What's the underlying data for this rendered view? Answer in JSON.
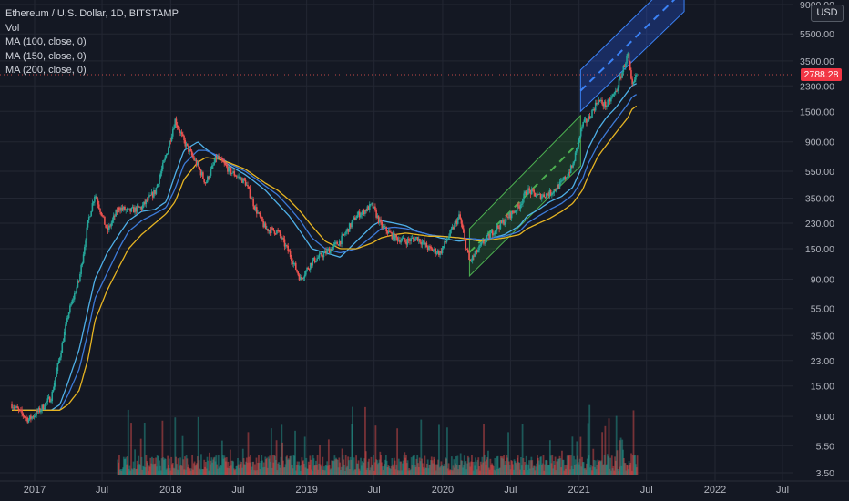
{
  "legend": {
    "symbol": "Ethereum / U.S. Dollar, 1D, BITSTAMP",
    "vol": "Vol",
    "ma100": "MA (100, close, 0)",
    "ma150": "MA (150, close, 0)",
    "ma200": "MA (200, close, 0)"
  },
  "currency": "USD",
  "last_price": "2788.28",
  "colors": {
    "up": "#26a69a",
    "down": "#ef5350",
    "ma100": "#4fb0e8",
    "ma150": "#3d7bd9",
    "ma200": "#e6b422",
    "green_channel": "#2e7d32",
    "blue_channel": "#2962ff"
  },
  "chart_data": {
    "type": "line",
    "scale": "log",
    "y_ticks": [
      "9000.00",
      "5500.00",
      "3500.00",
      "2300.00",
      "1500.00",
      "900.00",
      "550.00",
      "350.00",
      "230.00",
      "150.00",
      "90.00",
      "55.00",
      "35.00",
      "23.00",
      "15.00",
      "9.00",
      "5.50",
      "3.50"
    ],
    "x_ticks": [
      "2017",
      "Jul",
      "2018",
      "Jul",
      "2019",
      "Jul",
      "2020",
      "Jul",
      "2021",
      "Jul",
      "2022",
      "Jul"
    ],
    "x": [
      "2016-11-01",
      "2016-12-15",
      "2017-01-15",
      "2017-02-15",
      "2017-03-10",
      "2017-04-01",
      "2017-05-01",
      "2017-05-25",
      "2017-06-12",
      "2017-07-15",
      "2017-08-15",
      "2017-09-10",
      "2017-10-15",
      "2017-11-20",
      "2017-12-20",
      "2018-01-13",
      "2018-02-06",
      "2018-03-15",
      "2018-04-05",
      "2018-05-05",
      "2018-06-10",
      "2018-07-20",
      "2018-08-15",
      "2018-09-12",
      "2018-10-15",
      "2018-11-15",
      "2018-12-15",
      "2019-01-15",
      "2019-02-20",
      "2019-04-01",
      "2019-05-15",
      "2019-06-26",
      "2019-07-20",
      "2019-08-25",
      "2019-09-25",
      "2019-10-25",
      "2019-11-25",
      "2019-12-25",
      "2020-02-15",
      "2020-03-13",
      "2020-04-15",
      "2020-05-15",
      "2020-06-15",
      "2020-07-25",
      "2020-08-15",
      "2020-09-15",
      "2020-10-15",
      "2020-11-15",
      "2020-12-15",
      "2021-01-10",
      "2021-01-25",
      "2021-02-20",
      "2021-03-15",
      "2021-04-10",
      "2021-05-12",
      "2021-05-23",
      "2021-06-05"
    ],
    "series": [
      {
        "name": "Ethereum / U.S. Dollar",
        "values": [
          11,
          8.5,
          10,
          12.5,
          25,
          50,
          90,
          240,
          380,
          200,
          300,
          280,
          300,
          390,
          720,
          1300,
          900,
          600,
          450,
          700,
          550,
          460,
          300,
          210,
          200,
          140,
          90,
          120,
          140,
          170,
          260,
          310,
          220,
          180,
          170,
          180,
          150,
          140,
          260,
          120,
          160,
          200,
          240,
          310,
          400,
          360,
          380,
          450,
          600,
          1200,
          1300,
          1800,
          1650,
          2100,
          3900,
          2200,
          2788.28
        ]
      },
      {
        "name": "MA (100, close, 0)",
        "values": [
          10,
          10,
          10,
          10,
          11,
          16,
          28,
          55,
          90,
          140,
          190,
          240,
          280,
          290,
          330,
          520,
          780,
          900,
          800,
          700,
          600,
          520,
          460,
          400,
          320,
          260,
          200,
          150,
          140,
          130,
          170,
          220,
          240,
          230,
          220,
          200,
          190,
          180,
          170,
          175,
          170,
          180,
          190,
          220,
          260,
          290,
          330,
          360,
          420,
          600,
          800,
          1100,
          1350,
          1600,
          2100,
          2300,
          2400
        ]
      },
      {
        "name": "MA (150, close, 0)",
        "values": [
          10,
          10,
          10,
          10,
          10,
          13,
          20,
          38,
          65,
          100,
          150,
          200,
          240,
          270,
          300,
          410,
          620,
          780,
          780,
          720,
          620,
          550,
          490,
          430,
          370,
          300,
          240,
          180,
          150,
          140,
          150,
          185,
          210,
          215,
          210,
          200,
          190,
          185,
          180,
          178,
          175,
          180,
          185,
          200,
          230,
          260,
          290,
          320,
          370,
          480,
          620,
          850,
          1050,
          1300,
          1700,
          1900,
          2000
        ]
      },
      {
        "name": "MA (200, close, 0)",
        "values": [
          10,
          10,
          10,
          10,
          10,
          11,
          14,
          24,
          45,
          75,
          110,
          150,
          190,
          230,
          270,
          330,
          480,
          640,
          690,
          680,
          630,
          570,
          510,
          450,
          400,
          340,
          280,
          220,
          170,
          150,
          150,
          165,
          180,
          190,
          195,
          190,
          185,
          185,
          180,
          175,
          170,
          175,
          180,
          190,
          210,
          230,
          250,
          280,
          320,
          400,
          500,
          700,
          850,
          1050,
          1350,
          1550,
          1650
        ]
      }
    ]
  }
}
